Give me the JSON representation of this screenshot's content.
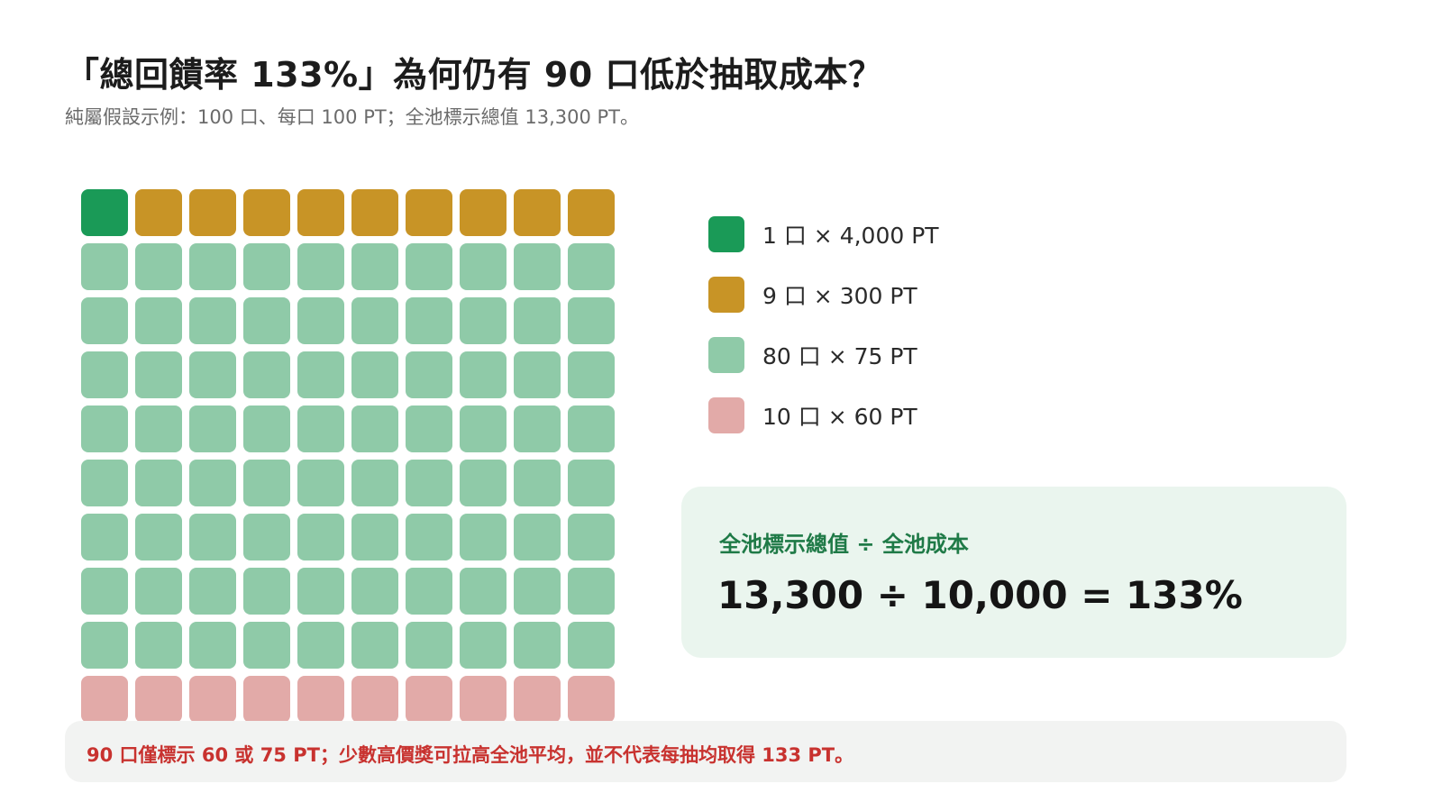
{
  "header": {
    "title": "「總回饋率 133%」為何仍有 90 口低於抽取成本？",
    "subtitle": "純屬假設示例：100 口、每口 100 PT；全池標示總值 13,300 PT。"
  },
  "chart_data": {
    "type": "waffle",
    "grid": {
      "rows": 10,
      "cols": 10,
      "total_units": 100
    },
    "series": [
      {
        "label": "1 口 × 4,000 PT",
        "count": 1,
        "value_pt": 4000,
        "color": "#1a9a57"
      },
      {
        "label": "9 口 × 300 PT",
        "count": 9,
        "value_pt": 300,
        "color": "#c89426"
      },
      {
        "label": "80 口 × 75 PT",
        "count": 80,
        "value_pt": 75,
        "color": "#8fcaa8"
      },
      {
        "label": "10 口 × 60 PT",
        "count": 10,
        "value_pt": 60,
        "color": "#e2aaa8"
      }
    ]
  },
  "formula": {
    "label": "全池標示總值 ÷ 全池成本",
    "expression": "13,300 ÷ 10,000 = 133%"
  },
  "note": {
    "text": "90 口僅標示 60 或 75 PT；少數高價獎可拉高全池平均，並不代表每抽均取得 133 PT。"
  }
}
